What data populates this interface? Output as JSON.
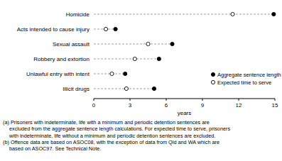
{
  "chart_data": {
    "type": "dot",
    "orientation": "horizontal",
    "categories": [
      "Homicide",
      "Acts intended to cause injury",
      "Sexual assault",
      "Robbery and extortion",
      "Unlawful entry with intent",
      "Illicit drugs"
    ],
    "series": [
      {
        "name": "Aggregate sentence length",
        "color": "#000000",
        "marker": "filled",
        "values": [
          14.9,
          1.8,
          6.5,
          5.4,
          2.6,
          5.0
        ]
      },
      {
        "name": "Expected time to serve",
        "color": "#000000",
        "marker": "open",
        "values": [
          11.5,
          1.0,
          4.5,
          3.4,
          1.5,
          2.7
        ]
      }
    ],
    "x_label": "years",
    "xlim": [
      0,
      15
    ],
    "xticks": [
      0,
      3,
      6,
      9,
      12,
      15
    ],
    "legend": "lower right",
    "notes": [
      [
        "(a) Prisoners with indeterminate, life with a minimum and periodic detention sentences are",
        "excluded from the aggregate sentence length calculations. For expected time to serve, prisoners",
        "with indeterminate, life without a minimum and periodic detention sentences are excluded."
      ],
      [
        "(b) Offence data are based on ASOC08, with the exception of data from Qld and WA which are",
        "based on ASOC97. See Technical Note."
      ]
    ]
  }
}
